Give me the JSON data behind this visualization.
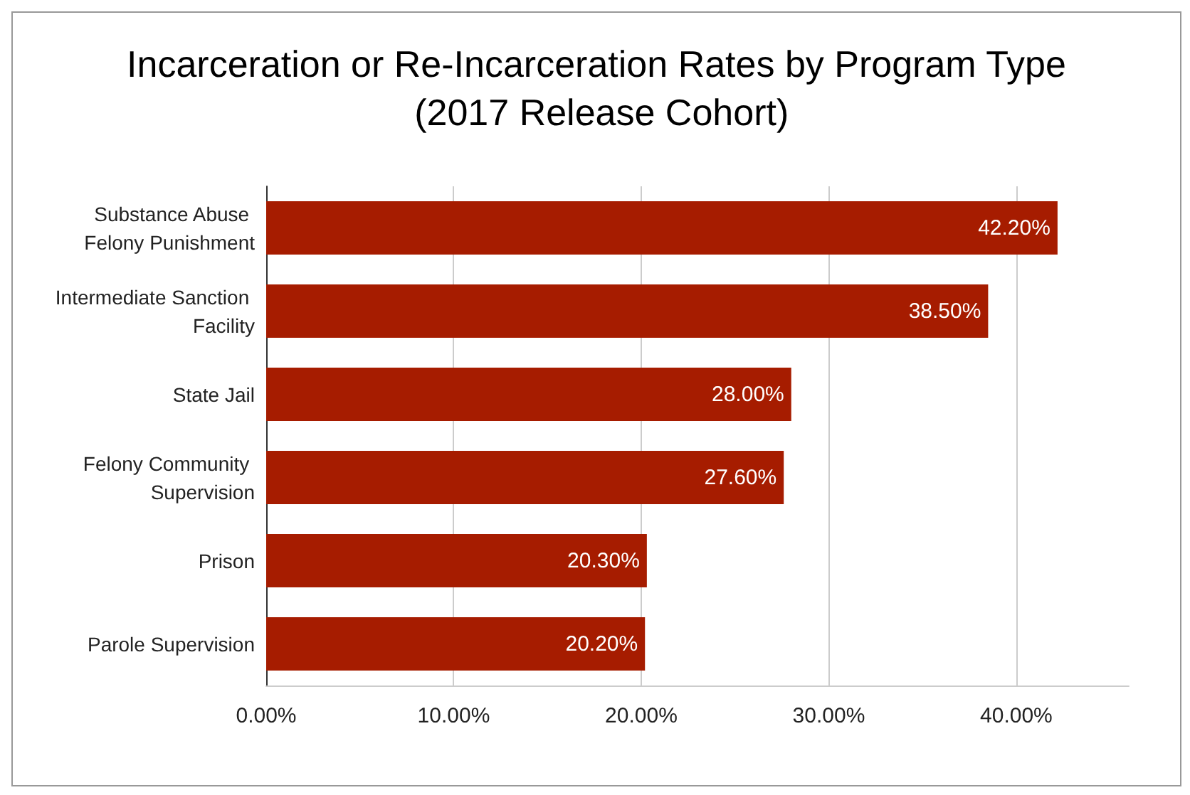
{
  "chart_data": {
    "type": "bar",
    "orientation": "horizontal",
    "title": "Incarceration or Re-Incarceration Rates by Program Type (2017 Release Cohort)",
    "categories": [
      "Substance Abuse Felony Punishment",
      "Intermediate Sanction Facility",
      "State Jail",
      "Felony Community Supervision",
      "Prison",
      "Parole Supervision"
    ],
    "values": [
      42.2,
      38.5,
      28.0,
      27.6,
      20.3,
      20.2
    ],
    "value_labels": [
      "42.20%",
      "38.50%",
      "28.00%",
      "27.60%",
      "20.30%",
      "20.20%"
    ],
    "color": "#a61c00",
    "xlim": [
      0,
      46
    ],
    "xticks": [
      {
        "value": 0,
        "label": "0.00%"
      },
      {
        "value": 10,
        "label": "10.00%"
      },
      {
        "value": 20,
        "label": "20.00%"
      },
      {
        "value": 30,
        "label": "30.00%"
      },
      {
        "value": 40,
        "label": "40.00%"
      }
    ],
    "grid": "x"
  }
}
